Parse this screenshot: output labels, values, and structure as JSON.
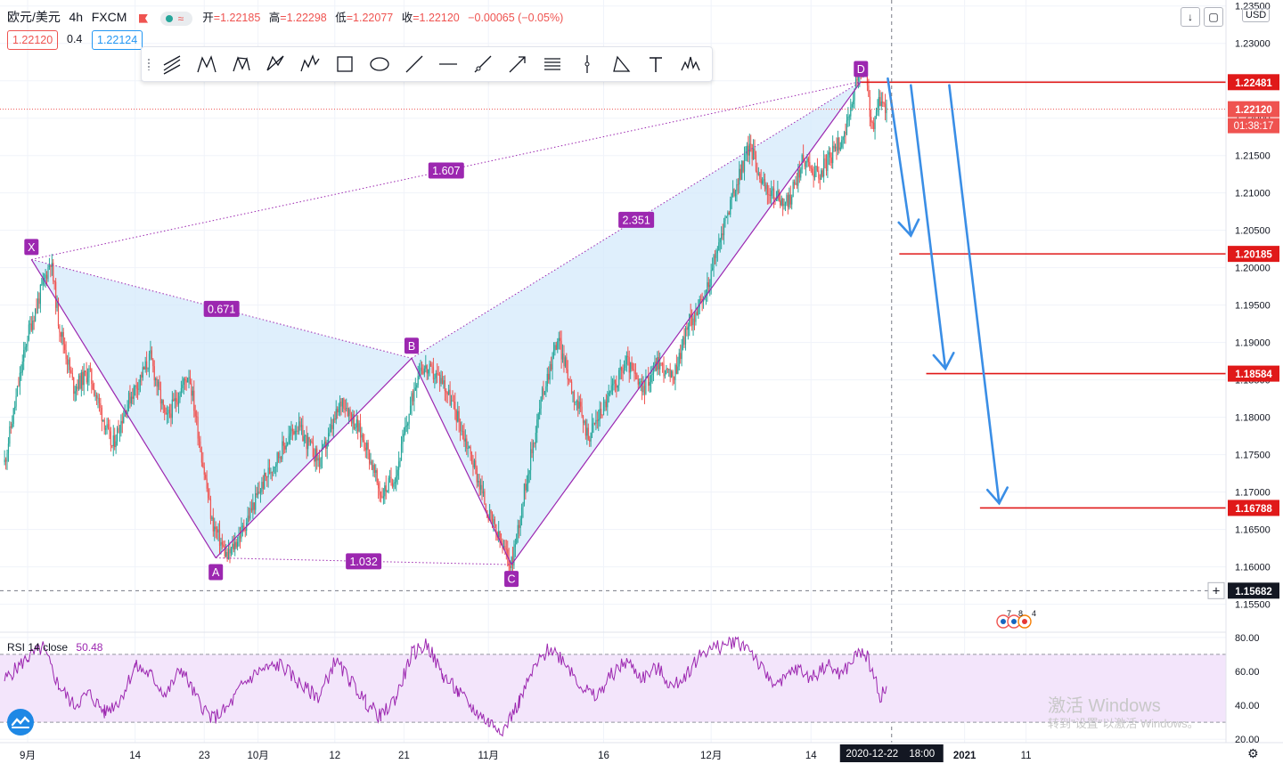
{
  "header": {
    "symbol": "欧元/美元",
    "interval": "4h",
    "exchange": "FXCM",
    "open_label": "开",
    "open": "=1.22185",
    "high_label": "高",
    "high": "=1.22298",
    "low_label": "低",
    "low": "=1.22077",
    "close_label": "收",
    "close": "=1.22120",
    "change": "−0.00065 (−0.05%)",
    "bid": "1.22120",
    "spread": "0.4",
    "ask": "1.22124",
    "status_wave": "≈",
    "currency": "USD",
    "colors": {
      "down": "#ef5350",
      "up": "#26a69a",
      "ask": "#2196f3"
    }
  },
  "toolbar": {
    "icons": [
      "trend-channel-icon",
      "xabcd-pattern-icon",
      "cypher-pattern-icon",
      "abcd-pattern-icon",
      "elliott-wave-icon",
      "rectangle-icon",
      "ellipse-icon",
      "trend-line-icon",
      "horizontal-line-icon",
      "ray-icon",
      "arrow-icon",
      "parallel-channel-icon",
      "vertical-line-icon",
      "triangle-icon",
      "text-icon",
      "head-shoulders-icon"
    ],
    "down_button": "↓",
    "screenshot_button": "▢"
  },
  "chart_data": [
    {
      "type": "candlestick",
      "title": "",
      "symbol": "EUR/USD",
      "interval": "4h",
      "ylim": [
        1.1515,
        1.2358
      ],
      "y_ticks": [
        1.155,
        1.16,
        1.165,
        1.17,
        1.175,
        1.18,
        1.185,
        1.19,
        1.195,
        1.2,
        1.205,
        1.21,
        1.215,
        1.22,
        1.225,
        1.23,
        1.235
      ],
      "y_tick_labels": [
        "1.15500",
        "1.16000",
        "1.16500",
        "1.17000",
        "1.17500",
        "1.18000",
        "1.18500",
        "1.19000",
        "1.19500",
        "1.20000",
        "1.20500",
        "1.21000",
        "1.21500",
        "1.22000",
        "1.22500",
        "1.23000",
        "1.23500"
      ],
      "x_ticks": [
        {
          "day": 0,
          "label": "9月"
        },
        {
          "day": 14,
          "label": "14"
        },
        {
          "day": 23,
          "label": "23"
        },
        {
          "day": 30,
          "label": "10月"
        },
        {
          "day": 40,
          "label": "12"
        },
        {
          "day": 49,
          "label": "21"
        },
        {
          "day": 60,
          "label": "11月"
        },
        {
          "day": 75,
          "label": "16"
        },
        {
          "day": 89,
          "label": "12月"
        },
        {
          "day": 102,
          "label": "14"
        },
        {
          "day": 122,
          "label": "2021"
        },
        {
          "day": 130,
          "label": "11"
        }
      ],
      "x_cursor_label": "2020-12-22",
      "x_cursor_time": "18:00",
      "price_path": [
        {
          "day": -3,
          "price": 1.174
        },
        {
          "day": 0,
          "price": 1.191
        },
        {
          "day": 3,
          "price": 1.2011
        },
        {
          "day": 4,
          "price": 1.193
        },
        {
          "day": 6,
          "price": 1.184
        },
        {
          "day": 8,
          "price": 1.186
        },
        {
          "day": 11,
          "price": 1.176
        },
        {
          "day": 13,
          "price": 1.182
        },
        {
          "day": 16,
          "price": 1.188
        },
        {
          "day": 18,
          "price": 1.1795
        },
        {
          "day": 21,
          "price": 1.186
        },
        {
          "day": 24,
          "price": 1.166
        },
        {
          "day": 26,
          "price": 1.1612
        },
        {
          "day": 28,
          "price": 1.165
        },
        {
          "day": 31,
          "price": 1.172
        },
        {
          "day": 35,
          "price": 1.179
        },
        {
          "day": 38,
          "price": 1.174
        },
        {
          "day": 41,
          "price": 1.1825
        },
        {
          "day": 44,
          "price": 1.1765
        },
        {
          "day": 46,
          "price": 1.1695
        },
        {
          "day": 48,
          "price": 1.1725
        },
        {
          "day": 51,
          "price": 1.187
        },
        {
          "day": 54,
          "price": 1.185
        },
        {
          "day": 56,
          "price": 1.18
        },
        {
          "day": 58,
          "price": 1.174
        },
        {
          "day": 60,
          "price": 1.167
        },
        {
          "day": 62,
          "price": 1.1622
        },
        {
          "day": 63,
          "price": 1.1603
        },
        {
          "day": 65,
          "price": 1.172
        },
        {
          "day": 67,
          "price": 1.183
        },
        {
          "day": 69,
          "price": 1.1905
        },
        {
          "day": 71,
          "price": 1.1835
        },
        {
          "day": 73,
          "price": 1.1775
        },
        {
          "day": 75,
          "price": 1.1815
        },
        {
          "day": 78,
          "price": 1.1875
        },
        {
          "day": 80,
          "price": 1.1835
        },
        {
          "day": 82,
          "price": 1.1875
        },
        {
          "day": 84,
          "price": 1.185
        },
        {
          "day": 86,
          "price": 1.1925
        },
        {
          "day": 88,
          "price": 1.1955
        },
        {
          "day": 91,
          "price": 1.207
        },
        {
          "day": 94,
          "price": 1.2165
        },
        {
          "day": 96,
          "price": 1.2105
        },
        {
          "day": 99,
          "price": 1.2085
        },
        {
          "day": 101,
          "price": 1.2145
        },
        {
          "day": 103,
          "price": 1.2125
        },
        {
          "day": 105,
          "price": 1.2155
        },
        {
          "day": 107,
          "price": 1.2195
        },
        {
          "day": 108,
          "price": 1.2255
        },
        {
          "day": 109,
          "price": 1.2265
        },
        {
          "day": 110,
          "price": 1.2185
        },
        {
          "day": 111,
          "price": 1.2225
        },
        {
          "day": 112,
          "price": 1.2212
        }
      ],
      "pattern": {
        "name": "XABCD",
        "points": [
          {
            "label": "X",
            "day": 0.5,
            "price": 1.2011
          },
          {
            "label": "A",
            "day": 24.5,
            "price": 1.1612
          },
          {
            "label": "B",
            "day": 50,
            "price": 1.1879
          },
          {
            "label": "C",
            "day": 63,
            "price": 1.1603
          },
          {
            "label": "D",
            "day": 108.5,
            "price": 1.2249
          }
        ],
        "ratios": [
          {
            "label": "1.607",
            "from": "X",
            "to": "D"
          },
          {
            "label": "0.671",
            "from": "X",
            "to": "B"
          },
          {
            "label": "2.351",
            "from": "B",
            "to": "D"
          },
          {
            "label": "1.032",
            "from": "A",
            "to": "C"
          }
        ],
        "color": "#9c27b0",
        "fill": "#d4eafb"
      },
      "levels": [
        {
          "price": 1.22481,
          "label": "1.22481",
          "from_day": 108.5
        },
        {
          "price": 1.20185,
          "label": "1.20185",
          "from_day": 113.5
        },
        {
          "price": 1.18584,
          "label": "1.18584",
          "from_day": 117
        },
        {
          "price": 1.16788,
          "label": "1.16788",
          "from_day": 124
        }
      ],
      "level_color": "#e01919",
      "arrows": [
        {
          "from_day": 112,
          "from_price": 1.2253,
          "to_day": 115,
          "to_price": 1.2043
        },
        {
          "from_day": 115,
          "from_price": 1.2244,
          "to_day": 119.5,
          "to_price": 1.1865
        },
        {
          "from_day": 120,
          "from_price": 1.2244,
          "to_day": 126.5,
          "to_price": 1.1685
        }
      ],
      "arrow_color": "#3a8ee6",
      "current_price": {
        "price": 1.2212,
        "label": "1.22120",
        "countdown": "01:38:17"
      },
      "crosshair_price": {
        "price": 1.15682,
        "label": "1.15682"
      },
      "crosshair_day": 112.5
    },
    {
      "type": "line",
      "title": "RSI",
      "length_label": "14",
      "source_label": "close",
      "value_label": "50.48",
      "ylim": [
        18,
        82
      ],
      "y_ticks": [
        20,
        40,
        60,
        80
      ],
      "y_tick_labels": [
        "20.00",
        "40.00",
        "60.00",
        "80.00"
      ],
      "band": [
        30,
        70
      ],
      "color": "#9c27b0",
      "band_fill": "#f3e5fb",
      "path": [
        {
          "day": -3,
          "value": 55
        },
        {
          "day": 0,
          "value": 68
        },
        {
          "day": 2,
          "value": 74
        },
        {
          "day": 4,
          "value": 52
        },
        {
          "day": 6,
          "value": 40
        },
        {
          "day": 8,
          "value": 47
        },
        {
          "day": 10,
          "value": 36
        },
        {
          "day": 12,
          "value": 43
        },
        {
          "day": 14,
          "value": 63
        },
        {
          "day": 16,
          "value": 58
        },
        {
          "day": 18,
          "value": 46
        },
        {
          "day": 20,
          "value": 62
        },
        {
          "day": 22,
          "value": 44
        },
        {
          "day": 24,
          "value": 32
        },
        {
          "day": 26,
          "value": 38
        },
        {
          "day": 28,
          "value": 52
        },
        {
          "day": 30,
          "value": 60
        },
        {
          "day": 33,
          "value": 64
        },
        {
          "day": 36,
          "value": 50
        },
        {
          "day": 38,
          "value": 45
        },
        {
          "day": 40,
          "value": 66
        },
        {
          "day": 42,
          "value": 55
        },
        {
          "day": 44,
          "value": 42
        },
        {
          "day": 46,
          "value": 33
        },
        {
          "day": 48,
          "value": 45
        },
        {
          "day": 50,
          "value": 70
        },
        {
          "day": 52,
          "value": 76
        },
        {
          "day": 54,
          "value": 58
        },
        {
          "day": 56,
          "value": 48
        },
        {
          "day": 58,
          "value": 38
        },
        {
          "day": 60,
          "value": 30
        },
        {
          "day": 62,
          "value": 26
        },
        {
          "day": 64,
          "value": 42
        },
        {
          "day": 66,
          "value": 62
        },
        {
          "day": 68,
          "value": 74
        },
        {
          "day": 70,
          "value": 66
        },
        {
          "day": 72,
          "value": 52
        },
        {
          "day": 74,
          "value": 44
        },
        {
          "day": 76,
          "value": 58
        },
        {
          "day": 78,
          "value": 66
        },
        {
          "day": 80,
          "value": 56
        },
        {
          "day": 82,
          "value": 62
        },
        {
          "day": 84,
          "value": 50
        },
        {
          "day": 86,
          "value": 60
        },
        {
          "day": 88,
          "value": 72
        },
        {
          "day": 90,
          "value": 74
        },
        {
          "day": 92,
          "value": 78
        },
        {
          "day": 94,
          "value": 74
        },
        {
          "day": 96,
          "value": 58
        },
        {
          "day": 98,
          "value": 52
        },
        {
          "day": 100,
          "value": 62
        },
        {
          "day": 102,
          "value": 56
        },
        {
          "day": 104,
          "value": 64
        },
        {
          "day": 106,
          "value": 58
        },
        {
          "day": 108,
          "value": 70
        },
        {
          "day": 109,
          "value": 72
        },
        {
          "day": 110,
          "value": 60
        },
        {
          "day": 111,
          "value": 46
        },
        {
          "day": 112,
          "value": 50
        }
      ]
    }
  ],
  "indicator_legend": {
    "name": "RSI",
    "length": "14",
    "source": "close",
    "value": "50.48"
  },
  "watermark": {
    "line1": "激活 Windows",
    "line2": "转到\"设置\"以激活 Windows。"
  },
  "events": [
    "7",
    "8",
    "4"
  ]
}
